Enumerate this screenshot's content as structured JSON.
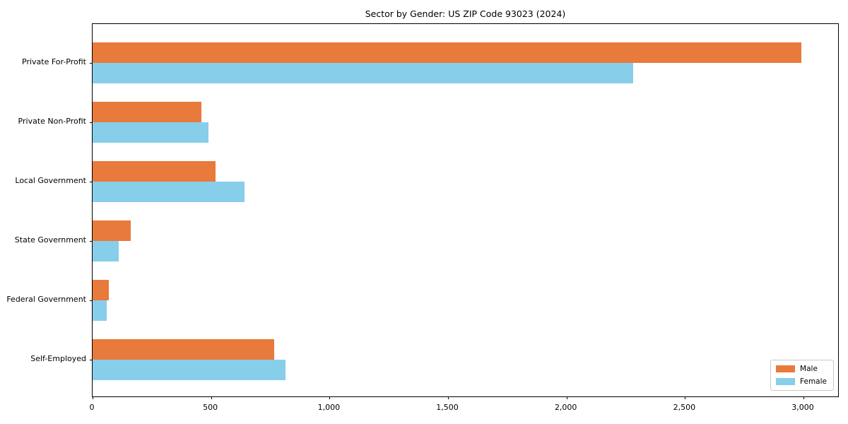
{
  "chart_data": {
    "type": "bar",
    "orientation": "horizontal",
    "title": "Sector by Gender: US ZIP Code 93023 (2024)",
    "categories": [
      "Private For-Profit",
      "Private Non-Profit",
      "Local Government",
      "State Government",
      "Federal Government",
      "Self-Employed"
    ],
    "series": [
      {
        "name": "Male",
        "color": "#E87A3C",
        "values": [
          2990,
          460,
          520,
          160,
          70,
          765
        ]
      },
      {
        "name": "Female",
        "color": "#87CEEB",
        "values": [
          2280,
          490,
          640,
          110,
          60,
          815
        ]
      }
    ],
    "xlabel": "",
    "ylabel": "",
    "xlim": [
      0,
      3146
    ],
    "x_ticks": [
      {
        "value": 0,
        "label": "0"
      },
      {
        "value": 500,
        "label": "500"
      },
      {
        "value": 1000,
        "label": "1,000"
      },
      {
        "value": 1500,
        "label": "1,500"
      },
      {
        "value": 2000,
        "label": "2,000"
      },
      {
        "value": 2500,
        "label": "2,500"
      },
      {
        "value": 3000,
        "label": "3,000"
      }
    ],
    "grid": false,
    "legend_position": "lower right",
    "background_color": "#FFFFFF",
    "axis_color": "#000000",
    "legend_border_color": "#C9C9C9"
  }
}
